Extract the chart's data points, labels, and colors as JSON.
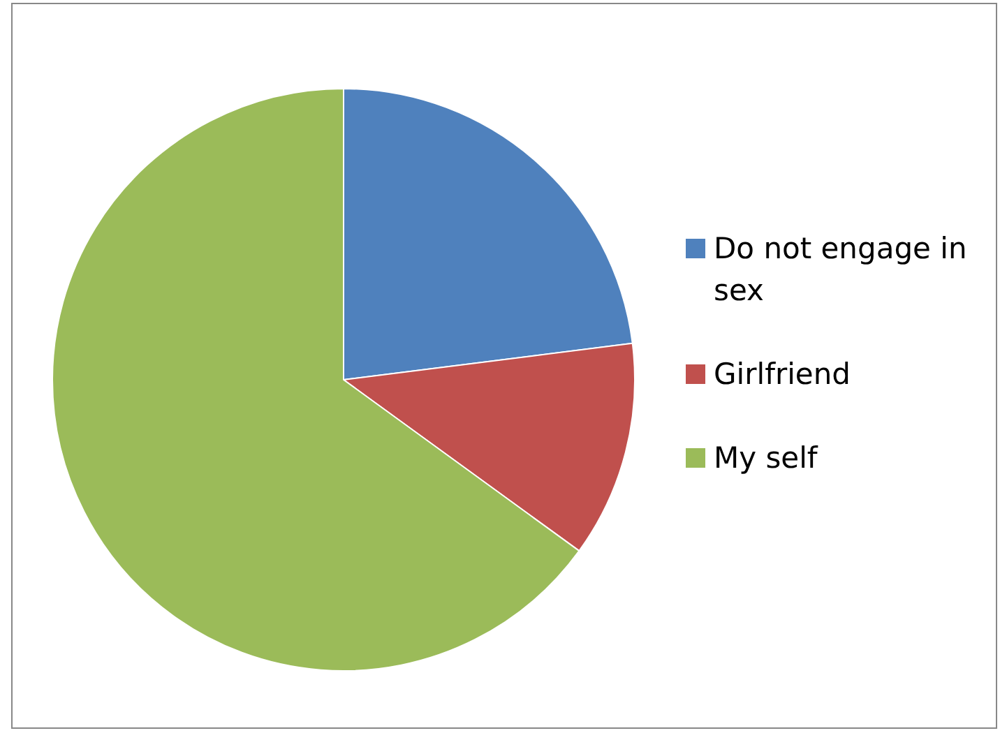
{
  "chart_data": {
    "type": "pie",
    "categories": [
      "Do not engage in sex",
      "Girlfriend",
      "My self"
    ],
    "values": [
      23,
      12,
      65
    ],
    "colors": [
      "#4f81bd",
      "#c0504d",
      "#9bbb59"
    ],
    "legend": "right"
  }
}
